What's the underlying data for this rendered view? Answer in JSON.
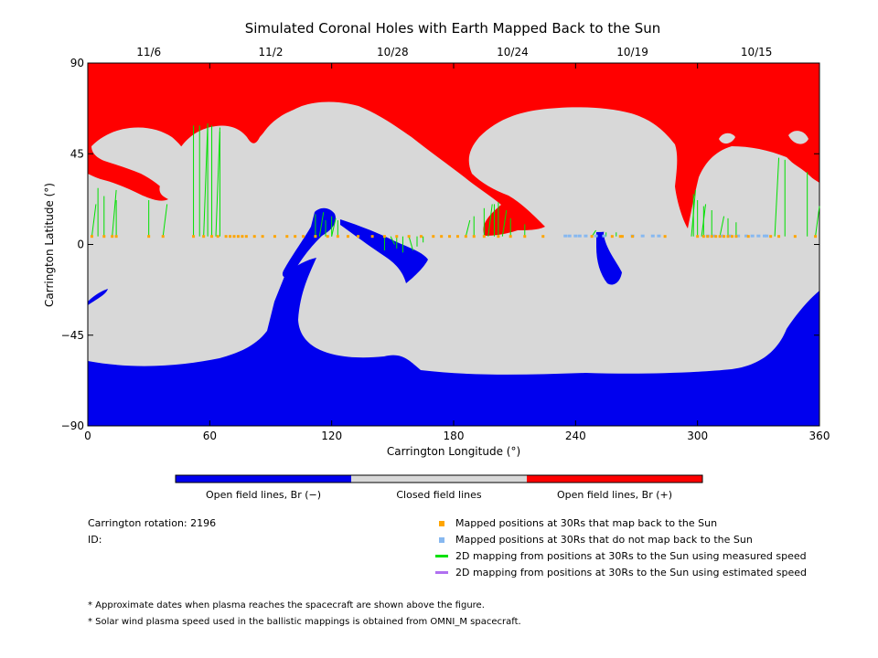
{
  "chart_data": {
    "type": "map",
    "title": "Simulated Coronal Holes with Earth Mapped Back to the Sun",
    "xlabel": "Carrington Longitude (°)",
    "ylabel": "Carrington Latitude (°)",
    "xlim": [
      0,
      360
    ],
    "ylim": [
      -90,
      90
    ],
    "xticks": [
      "0",
      "60",
      "120",
      "180",
      "240",
      "300",
      "360"
    ],
    "yticks": [
      "90",
      "45",
      "0",
      "−45",
      "−90"
    ],
    "top_date_ticks": [
      {
        "label": "11/6",
        "lon": 30
      },
      {
        "label": "11/2",
        "lon": 90
      },
      {
        "label": "10/28",
        "lon": 150
      },
      {
        "label": "10/24",
        "lon": 209
      },
      {
        "label": "10/19",
        "lon": 268
      },
      {
        "label": "10/15",
        "lon": 329
      }
    ],
    "colors": {
      "open_negative": "#0000ee",
      "closed": "#d8d8d8",
      "open_positive": "#ff0000",
      "mapped_point": "#ffa500",
      "unmapped_point": "#87b8f0",
      "measured_line": "#00e000",
      "estimated_line": "#b070f0"
    },
    "colorbar": [
      "Open field lines, Br (−)",
      "Closed field lines",
      "Open field lines, Br (+)"
    ],
    "mapped_points": {
      "latitude": 4,
      "lon": [
        2,
        8,
        12,
        14,
        30,
        37,
        52,
        57,
        61,
        64,
        68,
        70,
        72,
        74,
        76,
        78,
        82,
        86,
        92,
        98,
        102,
        106,
        112,
        118,
        123,
        128,
        133,
        140,
        146,
        152,
        158,
        164,
        170,
        174,
        178,
        182,
        186,
        190,
        195,
        202,
        208,
        215,
        224,
        248,
        258,
        262,
        263,
        268,
        284,
        300,
        303,
        305,
        307,
        309,
        311,
        313,
        315,
        317,
        319,
        325,
        336,
        340,
        348,
        358
      ],
      "measured_line_ends": [
        [
          2,
          20
        ],
        [
          5,
          28
        ],
        [
          8,
          24
        ],
        [
          12,
          27
        ],
        [
          14,
          22
        ],
        [
          30,
          22
        ],
        [
          37,
          20
        ],
        [
          52,
          59
        ],
        [
          55,
          59
        ],
        [
          57,
          60
        ],
        [
          59,
          59
        ],
        [
          61,
          59
        ],
        [
          63,
          58
        ],
        [
          65,
          56
        ],
        [
          112,
          15
        ],
        [
          114,
          16
        ],
        [
          117,
          12
        ],
        [
          120,
          14
        ],
        [
          120,
          13
        ],
        [
          123,
          12
        ],
        [
          146,
          -3
        ],
        [
          149,
          0
        ],
        [
          152,
          -2
        ],
        [
          155,
          -4
        ],
        [
          158,
          -3
        ],
        [
          162,
          -1
        ],
        [
          165,
          1
        ],
        [
          186,
          12
        ],
        [
          190,
          14
        ],
        [
          195,
          18
        ],
        [
          197,
          20
        ],
        [
          200,
          20
        ],
        [
          202,
          21
        ],
        [
          204,
          17
        ],
        [
          208,
          13
        ],
        [
          215,
          10
        ],
        [
          248,
          7
        ],
        [
          255,
          6
        ],
        [
          260,
          6
        ],
        [
          297,
          27
        ],
        [
          298,
          25
        ],
        [
          300,
          22
        ],
        [
          302,
          20
        ],
        [
          303,
          19
        ],
        [
          307,
          17
        ],
        [
          311,
          14
        ],
        [
          315,
          13
        ],
        [
          319,
          11
        ],
        [
          338,
          43
        ],
        [
          343,
          42
        ],
        [
          354,
          36
        ],
        [
          358,
          19
        ]
      ]
    },
    "unmapped_points": {
      "latitude": 4,
      "lon": [
        235,
        237,
        240,
        242,
        245,
        250,
        254,
        268,
        273,
        278,
        281,
        305,
        308,
        312,
        316,
        320,
        324,
        327,
        330,
        333,
        334
      ]
    }
  },
  "info": {
    "rotation_label": "Carrington rotation: 2196",
    "id_label": "ID:"
  },
  "legend": {
    "mapped": "Mapped positions at 30Rs that map back to the Sun",
    "unmapped": "Mapped positions at 30Rs that do not map back to the Sun",
    "measured": "2D mapping from positions at 30Rs to the Sun using measured speed",
    "estimated": "2D mapping from positions at 30Rs to the Sun using estimated speed"
  },
  "notes": [
    "* Approximate dates when plasma reaches the spacecraft are shown above the figure.",
    "* Solar wind plasma speed used in the ballistic mappings is obtained from OMNI_M spacecraft."
  ]
}
